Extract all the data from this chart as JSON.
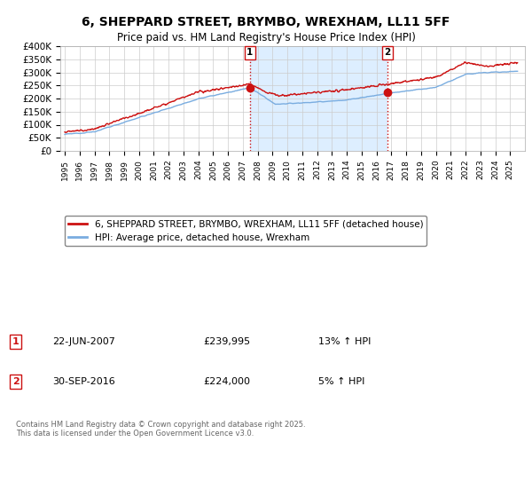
{
  "title_line1": "6, SHEPPARD STREET, BRYMBO, WREXHAM, LL11 5FF",
  "title_line2": "Price paid vs. HM Land Registry's House Price Index (HPI)",
  "ylim": [
    0,
    400000
  ],
  "yticks": [
    0,
    50000,
    100000,
    150000,
    200000,
    250000,
    300000,
    350000,
    400000
  ],
  "ytick_labels": [
    "£0",
    "£50K",
    "£100K",
    "£150K",
    "£200K",
    "£250K",
    "£300K",
    "£350K",
    "£400K"
  ],
  "hpi_color": "#7aade0",
  "price_color": "#cc1111",
  "vline_color": "#cc1111",
  "shade_color": "#ddeeff",
  "background_color": "#ffffff",
  "grid_color": "#cccccc",
  "legend_label_price": "6, SHEPPARD STREET, BRYMBO, WREXHAM, LL11 5FF (detached house)",
  "legend_label_hpi": "HPI: Average price, detached house, Wrexham",
  "sale1_date": "22-JUN-2007",
  "sale1_price": "£239,995",
  "sale1_hpi": "13% ↑ HPI",
  "sale1_year": 2007.47,
  "sale1_price_val": 239995,
  "sale2_date": "30-SEP-2016",
  "sale2_price": "£224,000",
  "sale2_hpi": "5% ↑ HPI",
  "sale2_year": 2016.75,
  "sale2_price_val": 224000,
  "footer": "Contains HM Land Registry data © Crown copyright and database right 2025.\nThis data is licensed under the Open Government Licence v3.0."
}
